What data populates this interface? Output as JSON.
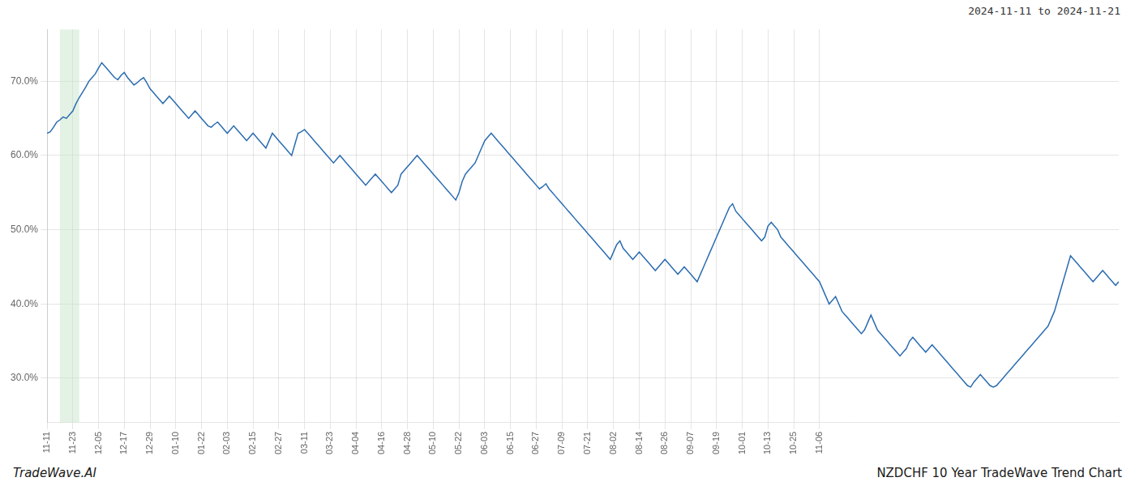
{
  "chart_data": {
    "type": "line",
    "title": "NZDCHF 10 Year TradeWave Trend Chart",
    "subtitle": "2024-11-11 to 2024-11-21",
    "annotations": [
      "TradeWave.AI"
    ],
    "color": "#2b6cb0",
    "grid": true,
    "ylim": [
      24.0,
      77.0
    ],
    "yticks": [
      {
        "value": 30.0,
        "label": "30.0%"
      },
      {
        "value": 40.0,
        "label": "40.0%"
      },
      {
        "value": 50.0,
        "label": "50.0%"
      },
      {
        "value": 60.0,
        "label": "60.0%"
      },
      {
        "value": 70.0,
        "label": "70.0%"
      }
    ],
    "shaded_range": {
      "start": 4,
      "end": 10,
      "color": "#c8e6c9"
    },
    "categories": [
      "11-11",
      null,
      null,
      null,
      null,
      null,
      null,
      null,
      "11-23",
      null,
      null,
      null,
      null,
      null,
      null,
      null,
      "12-05",
      null,
      null,
      null,
      null,
      null,
      null,
      null,
      "12-17",
      null,
      null,
      null,
      null,
      null,
      null,
      null,
      "12-29",
      null,
      null,
      null,
      null,
      null,
      null,
      null,
      "01-10",
      null,
      null,
      null,
      null,
      null,
      null,
      null,
      "01-22",
      null,
      null,
      null,
      null,
      null,
      null,
      null,
      "02-03",
      null,
      null,
      null,
      null,
      null,
      null,
      null,
      "02-15",
      null,
      null,
      null,
      null,
      null,
      null,
      null,
      "02-27",
      null,
      null,
      null,
      null,
      null,
      null,
      null,
      "03-11",
      null,
      null,
      null,
      null,
      null,
      null,
      null,
      "03-23",
      null,
      null,
      null,
      null,
      null,
      null,
      null,
      "04-04",
      null,
      null,
      null,
      null,
      null,
      null,
      null,
      "04-16",
      null,
      null,
      null,
      null,
      null,
      null,
      null,
      "04-28",
      null,
      null,
      null,
      null,
      null,
      null,
      null,
      "05-10",
      null,
      null,
      null,
      null,
      null,
      null,
      null,
      "05-22",
      null,
      null,
      null,
      null,
      null,
      null,
      null,
      "06-03",
      null,
      null,
      null,
      null,
      null,
      null,
      null,
      "06-15",
      null,
      null,
      null,
      null,
      null,
      null,
      null,
      "06-27",
      null,
      null,
      null,
      null,
      null,
      null,
      null,
      "07-09",
      null,
      null,
      null,
      null,
      null,
      null,
      null,
      "07-21",
      null,
      null,
      null,
      null,
      null,
      null,
      null,
      "08-02",
      null,
      null,
      null,
      null,
      null,
      null,
      null,
      "08-14",
      null,
      null,
      null,
      null,
      null,
      null,
      null,
      "08-26",
      null,
      null,
      null,
      null,
      null,
      null,
      null,
      "09-07",
      null,
      null,
      null,
      null,
      null,
      null,
      null,
      "09-19",
      null,
      null,
      null,
      null,
      null,
      null,
      null,
      "10-01",
      null,
      null,
      null,
      null,
      null,
      null,
      null,
      "10-13",
      null,
      null,
      null,
      null,
      null,
      null,
      null,
      "10-25",
      null,
      null,
      null,
      null,
      null,
      null,
      null,
      "11-06",
      null,
      null,
      null,
      null,
      null,
      null,
      null,
      null,
      null,
      null,
      null,
      null,
      null,
      null,
      null,
      null,
      null,
      null,
      null,
      null,
      null,
      null,
      null,
      null,
      null,
      null,
      null,
      null,
      null,
      null,
      null,
      null,
      null,
      null,
      null,
      null,
      null,
      null,
      null,
      null,
      null,
      null,
      null,
      null,
      null,
      null,
      null,
      null,
      null,
      null,
      null,
      null,
      null,
      null,
      null,
      null,
      null,
      null,
      null,
      null,
      null,
      null,
      null,
      null,
      null,
      null,
      null,
      null,
      null,
      null,
      null,
      null,
      null,
      null,
      null,
      null,
      null,
      null,
      null,
      null,
      null,
      null,
      null,
      null,
      null,
      null,
      null,
      null,
      null,
      null,
      null,
      null,
      null
    ],
    "values": [
      63.0,
      63.2,
      63.8,
      64.5,
      64.8,
      65.2,
      65.0,
      65.5,
      66.0,
      67.0,
      67.8,
      68.5,
      69.2,
      70.0,
      70.5,
      71.0,
      71.8,
      72.5,
      72.0,
      71.5,
      71.0,
      70.5,
      70.2,
      70.8,
      71.2,
      70.5,
      70.0,
      69.5,
      69.8,
      70.2,
      70.5,
      69.8,
      69.0,
      68.5,
      68.0,
      67.5,
      67.0,
      67.5,
      68.0,
      67.5,
      67.0,
      66.5,
      66.0,
      65.5,
      65.0,
      65.5,
      66.0,
      65.5,
      65.0,
      64.5,
      64.0,
      63.8,
      64.2,
      64.5,
      64.0,
      63.5,
      63.0,
      63.5,
      64.0,
      63.5,
      63.0,
      62.5,
      62.0,
      62.5,
      63.0,
      62.5,
      62.0,
      61.5,
      61.0,
      62.0,
      63.0,
      62.5,
      62.0,
      61.5,
      61.0,
      60.5,
      60.0,
      61.5,
      63.0,
      63.2,
      63.5,
      63.0,
      62.5,
      62.0,
      61.5,
      61.0,
      60.5,
      60.0,
      59.5,
      59.0,
      59.5,
      60.0,
      59.5,
      59.0,
      58.5,
      58.0,
      57.5,
      57.0,
      56.5,
      56.0,
      56.5,
      57.0,
      57.5,
      57.0,
      56.5,
      56.0,
      55.5,
      55.0,
      55.5,
      56.0,
      57.5,
      58.0,
      58.5,
      59.0,
      59.5,
      60.0,
      59.5,
      59.0,
      58.5,
      58.0,
      57.5,
      57.0,
      56.5,
      56.0,
      55.5,
      55.0,
      54.5,
      54.0,
      55.0,
      56.5,
      57.5,
      58.0,
      58.5,
      59.0,
      60.0,
      61.0,
      62.0,
      62.5,
      63.0,
      62.5,
      62.0,
      61.5,
      61.0,
      60.5,
      60.0,
      59.5,
      59.0,
      58.5,
      58.0,
      57.5,
      57.0,
      56.5,
      56.0,
      55.5,
      55.8,
      56.2,
      55.5,
      55.0,
      54.5,
      54.0,
      53.5,
      53.0,
      52.5,
      52.0,
      51.5,
      51.0,
      50.5,
      50.0,
      49.5,
      49.0,
      48.5,
      48.0,
      47.5,
      47.0,
      46.5,
      46.0,
      47.0,
      48.0,
      48.5,
      47.5,
      47.0,
      46.5,
      46.0,
      46.5,
      47.0,
      46.5,
      46.0,
      45.5,
      45.0,
      44.5,
      45.0,
      45.5,
      46.0,
      45.5,
      45.0,
      44.5,
      44.0,
      44.5,
      45.0,
      44.5,
      44.0,
      43.5,
      43.0,
      44.0,
      45.0,
      46.0,
      47.0,
      48.0,
      49.0,
      50.0,
      51.0,
      52.0,
      53.0,
      53.5,
      52.5,
      52.0,
      51.5,
      51.0,
      50.5,
      50.0,
      49.5,
      49.0,
      48.5,
      49.0,
      50.5,
      51.0,
      50.5,
      50.0,
      49.0,
      48.5,
      48.0,
      47.5,
      47.0,
      46.5,
      46.0,
      45.5,
      45.0,
      44.5,
      44.0,
      43.5,
      43.0,
      42.0,
      41.0,
      40.0,
      40.5,
      41.0,
      40.0,
      39.0,
      38.5,
      38.0,
      37.5,
      37.0,
      36.5,
      36.0,
      36.5,
      37.5,
      38.5,
      37.5,
      36.5,
      36.0,
      35.5,
      35.0,
      34.5,
      34.0,
      33.5,
      33.0,
      33.5,
      34.0,
      35.0,
      35.5,
      35.0,
      34.5,
      34.0,
      33.5,
      34.0,
      34.5,
      34.0,
      33.5,
      33.0,
      32.5,
      32.0,
      31.5,
      31.0,
      30.5,
      30.0,
      29.5,
      29.0,
      28.8,
      29.5,
      30.0,
      30.5,
      30.0,
      29.5,
      29.0,
      28.8,
      29.0,
      29.5,
      30.0,
      30.5,
      31.0,
      31.5,
      32.0,
      32.5,
      33.0,
      33.5,
      34.0,
      34.5,
      35.0,
      35.5,
      36.0,
      36.5,
      37.0,
      38.0,
      39.0,
      40.5,
      42.0,
      43.5,
      45.0,
      46.5,
      46.0,
      45.5,
      45.0,
      44.5,
      44.0,
      43.5,
      43.0,
      43.5,
      44.0,
      44.5,
      44.0,
      43.5,
      43.0,
      42.5,
      43.0
    ]
  }
}
